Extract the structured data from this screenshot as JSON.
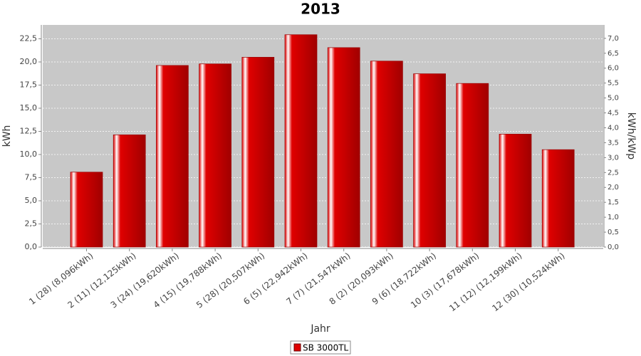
{
  "chart_data": {
    "type": "bar",
    "title": "2013",
    "categories": [
      "1 (28)  (8,096kWh)",
      "2 (11)  (12,125kWh)",
      "3 (24)  (19,620kWh)",
      "4 (15)  (19,788kWh)",
      "5 (28)  (20,507kWh)",
      "6 (5)  (22,942kWh)",
      "7 (7)  (21,547kWh)",
      "8 (2)  (20,093kWh)",
      "9 (6)  (18,722kWh)",
      "10 (3)  (17,678kWh)",
      "11 (12)  (12,199kWh)",
      "12 (30)  (10,524kWh)"
    ],
    "series": [
      {
        "name": "SB 3000TL",
        "color": "#e00000",
        "values": [
          8.096,
          12.125,
          19.62,
          19.788,
          20.507,
          22.942,
          21.547,
          20.093,
          18.722,
          17.678,
          12.199,
          10.524
        ]
      }
    ],
    "xlabel": "Jahr",
    "ylabel": "kWh",
    "y2label": "kWh/kWp",
    "ylim": [
      0,
      24
    ],
    "yticks": [
      {
        "value": 0,
        "label": "0,0"
      },
      {
        "value": 2.5,
        "label": "2,5"
      },
      {
        "value": 5,
        "label": "5,0"
      },
      {
        "value": 7.5,
        "label": "7,5"
      },
      {
        "value": 10,
        "label": "10,0"
      },
      {
        "value": 12.5,
        "label": "12,5"
      },
      {
        "value": 15,
        "label": "15,0"
      },
      {
        "value": 17.5,
        "label": "17,5"
      },
      {
        "value": 20,
        "label": "20,0"
      },
      {
        "value": 22.5,
        "label": "22,5"
      }
    ],
    "y2lim": [
      0,
      7.45
    ],
    "y2ticks": [
      {
        "value": 0,
        "label": "0,0"
      },
      {
        "value": 0.5,
        "label": "0,5"
      },
      {
        "value": 1,
        "label": "1,0"
      },
      {
        "value": 1.5,
        "label": "1,5"
      },
      {
        "value": 2,
        "label": "2,0"
      },
      {
        "value": 2.5,
        "label": "2,5"
      },
      {
        "value": 3,
        "label": "3,0"
      },
      {
        "value": 3.5,
        "label": "3,5"
      },
      {
        "value": 4,
        "label": "4,0"
      },
      {
        "value": 4.5,
        "label": "4,5"
      },
      {
        "value": 5,
        "label": "5,0"
      },
      {
        "value": 5.5,
        "label": "5,5"
      },
      {
        "value": 6,
        "label": "6,0"
      },
      {
        "value": 6.5,
        "label": "6,5"
      },
      {
        "value": 7,
        "label": "7,0"
      }
    ],
    "grid": true,
    "legend": "bottom"
  }
}
